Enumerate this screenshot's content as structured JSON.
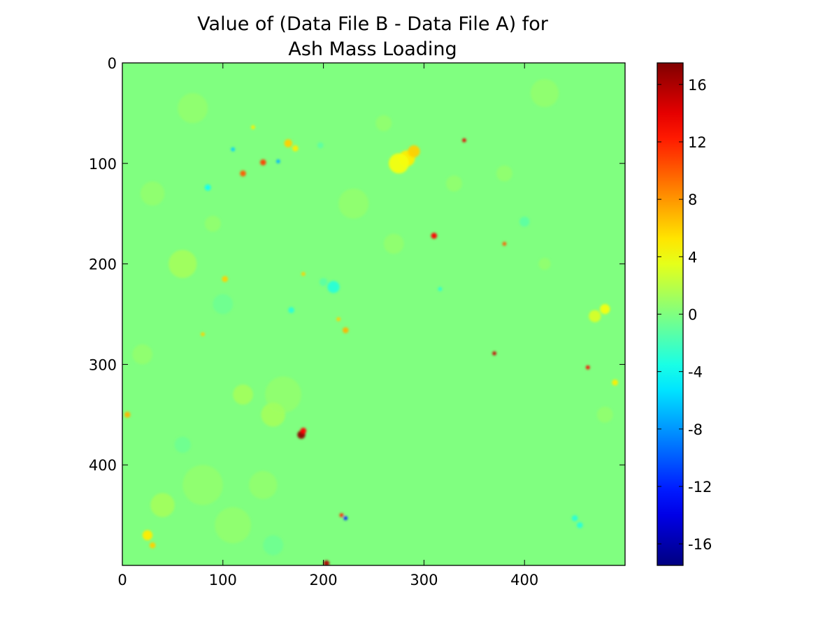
{
  "chart_data": {
    "type": "heatmap",
    "title_lines": [
      "Value of (Data File B - Data File A) for",
      "Ash Mass Loading"
    ],
    "xlim": [
      0,
      500
    ],
    "ylim": [
      500,
      0
    ],
    "y_inverted": true,
    "xticks": [
      0,
      100,
      200,
      300,
      400
    ],
    "yticks": [
      0,
      100,
      200,
      300,
      400
    ],
    "colormap": "jet",
    "background_value": 0,
    "colorbar": {
      "range": [
        -17.5,
        17.5
      ],
      "ticks": [
        16,
        12,
        8,
        4,
        0,
        -4,
        -8,
        -12,
        -16
      ]
    },
    "features": [
      {
        "x": 178,
        "y": 370,
        "value": 17,
        "r": 4
      },
      {
        "x": 180,
        "y": 366,
        "value": 13,
        "r": 3
      },
      {
        "x": 310,
        "y": 172,
        "value": 13,
        "r": 3
      },
      {
        "x": 140,
        "y": 99,
        "value": 11,
        "r": 3
      },
      {
        "x": 120,
        "y": 110,
        "value": 10,
        "r": 3
      },
      {
        "x": 203,
        "y": 498,
        "value": 16,
        "r": 3
      },
      {
        "x": 218,
        "y": 450,
        "value": 12,
        "r": 2
      },
      {
        "x": 370,
        "y": 289,
        "value": 15,
        "r": 2
      },
      {
        "x": 463,
        "y": 303,
        "value": 13,
        "r": 2
      },
      {
        "x": 340,
        "y": 77,
        "value": 14,
        "r": 2
      },
      {
        "x": 380,
        "y": 180,
        "value": 10,
        "r": 2
      },
      {
        "x": 222,
        "y": 453,
        "value": -12,
        "r": 2
      },
      {
        "x": 155,
        "y": 98,
        "value": -7,
        "r": 2
      },
      {
        "x": 110,
        "y": 86,
        "value": -6,
        "r": 2
      },
      {
        "x": 85,
        "y": 124,
        "value": -4,
        "r": 3
      },
      {
        "x": 283,
        "y": 95,
        "value": 5,
        "r": 8
      },
      {
        "x": 290,
        "y": 88,
        "value": 6,
        "r": 6
      },
      {
        "x": 275,
        "y": 100,
        "value": 4,
        "r": 10
      },
      {
        "x": 165,
        "y": 80,
        "value": 6,
        "r": 4
      },
      {
        "x": 172,
        "y": 85,
        "value": 5,
        "r": 3
      },
      {
        "x": 480,
        "y": 245,
        "value": 4,
        "r": 5
      },
      {
        "x": 470,
        "y": 252,
        "value": 3,
        "r": 6
      },
      {
        "x": 490,
        "y": 318,
        "value": 5,
        "r": 3
      },
      {
        "x": 5,
        "y": 350,
        "value": 7,
        "r": 3
      },
      {
        "x": 25,
        "y": 470,
        "value": 5,
        "r": 5
      },
      {
        "x": 222,
        "y": 266,
        "value": 7,
        "r": 3
      },
      {
        "x": 102,
        "y": 215,
        "value": 6,
        "r": 3
      },
      {
        "x": 180,
        "y": 210,
        "value": 6,
        "r": 2
      },
      {
        "x": 210,
        "y": 223,
        "value": -3,
        "r": 6
      },
      {
        "x": 200,
        "y": 218,
        "value": -2,
        "r": 4
      },
      {
        "x": 168,
        "y": 246,
        "value": -3,
        "r": 3
      },
      {
        "x": 316,
        "y": 225,
        "value": -3,
        "r": 2
      },
      {
        "x": 400,
        "y": 158,
        "value": -2,
        "r": 5
      },
      {
        "x": 450,
        "y": 453,
        "value": -3,
        "r": 3
      },
      {
        "x": 455,
        "y": 460,
        "value": -3,
        "r": 3
      },
      {
        "x": 197,
        "y": 82,
        "value": -2,
        "r": 3
      },
      {
        "x": 130,
        "y": 64,
        "value": 5,
        "r": 2
      },
      {
        "x": 215,
        "y": 255,
        "value": 6,
        "r": 2
      },
      {
        "x": 80,
        "y": 270,
        "value": 6,
        "r": 2
      },
      {
        "x": 30,
        "y": 480,
        "value": 6,
        "r": 3
      },
      {
        "x": 60,
        "y": 200,
        "value": 2,
        "r": 14
      },
      {
        "x": 150,
        "y": 350,
        "value": 2,
        "r": 12
      },
      {
        "x": 160,
        "y": 330,
        "value": 1,
        "r": 18
      },
      {
        "x": 70,
        "y": 45,
        "value": 1,
        "r": 15
      },
      {
        "x": 420,
        "y": 30,
        "value": 1,
        "r": 14
      },
      {
        "x": 80,
        "y": 420,
        "value": 1,
        "r": 20
      },
      {
        "x": 40,
        "y": 440,
        "value": 2,
        "r": 12
      },
      {
        "x": 110,
        "y": 460,
        "value": 1,
        "r": 18
      },
      {
        "x": 230,
        "y": 140,
        "value": 1,
        "r": 15
      },
      {
        "x": 30,
        "y": 130,
        "value": 1,
        "r": 12
      },
      {
        "x": 20,
        "y": 290,
        "value": 1,
        "r": 10
      },
      {
        "x": 100,
        "y": 240,
        "value": -1,
        "r": 10
      },
      {
        "x": 120,
        "y": 330,
        "value": 2,
        "r": 10
      },
      {
        "x": 60,
        "y": 380,
        "value": -1,
        "r": 8
      },
      {
        "x": 140,
        "y": 420,
        "value": 1,
        "r": 14
      },
      {
        "x": 380,
        "y": 110,
        "value": 1,
        "r": 8
      },
      {
        "x": 480,
        "y": 350,
        "value": 1,
        "r": 8
      },
      {
        "x": 270,
        "y": 180,
        "value": 1,
        "r": 10
      },
      {
        "x": 330,
        "y": 120,
        "value": 1,
        "r": 8
      },
      {
        "x": 420,
        "y": 200,
        "value": 1,
        "r": 6
      },
      {
        "x": 150,
        "y": 480,
        "value": -1,
        "r": 10
      },
      {
        "x": 260,
        "y": 60,
        "value": 1,
        "r": 8
      },
      {
        "x": 90,
        "y": 160,
        "value": 1,
        "r": 8
      }
    ]
  }
}
